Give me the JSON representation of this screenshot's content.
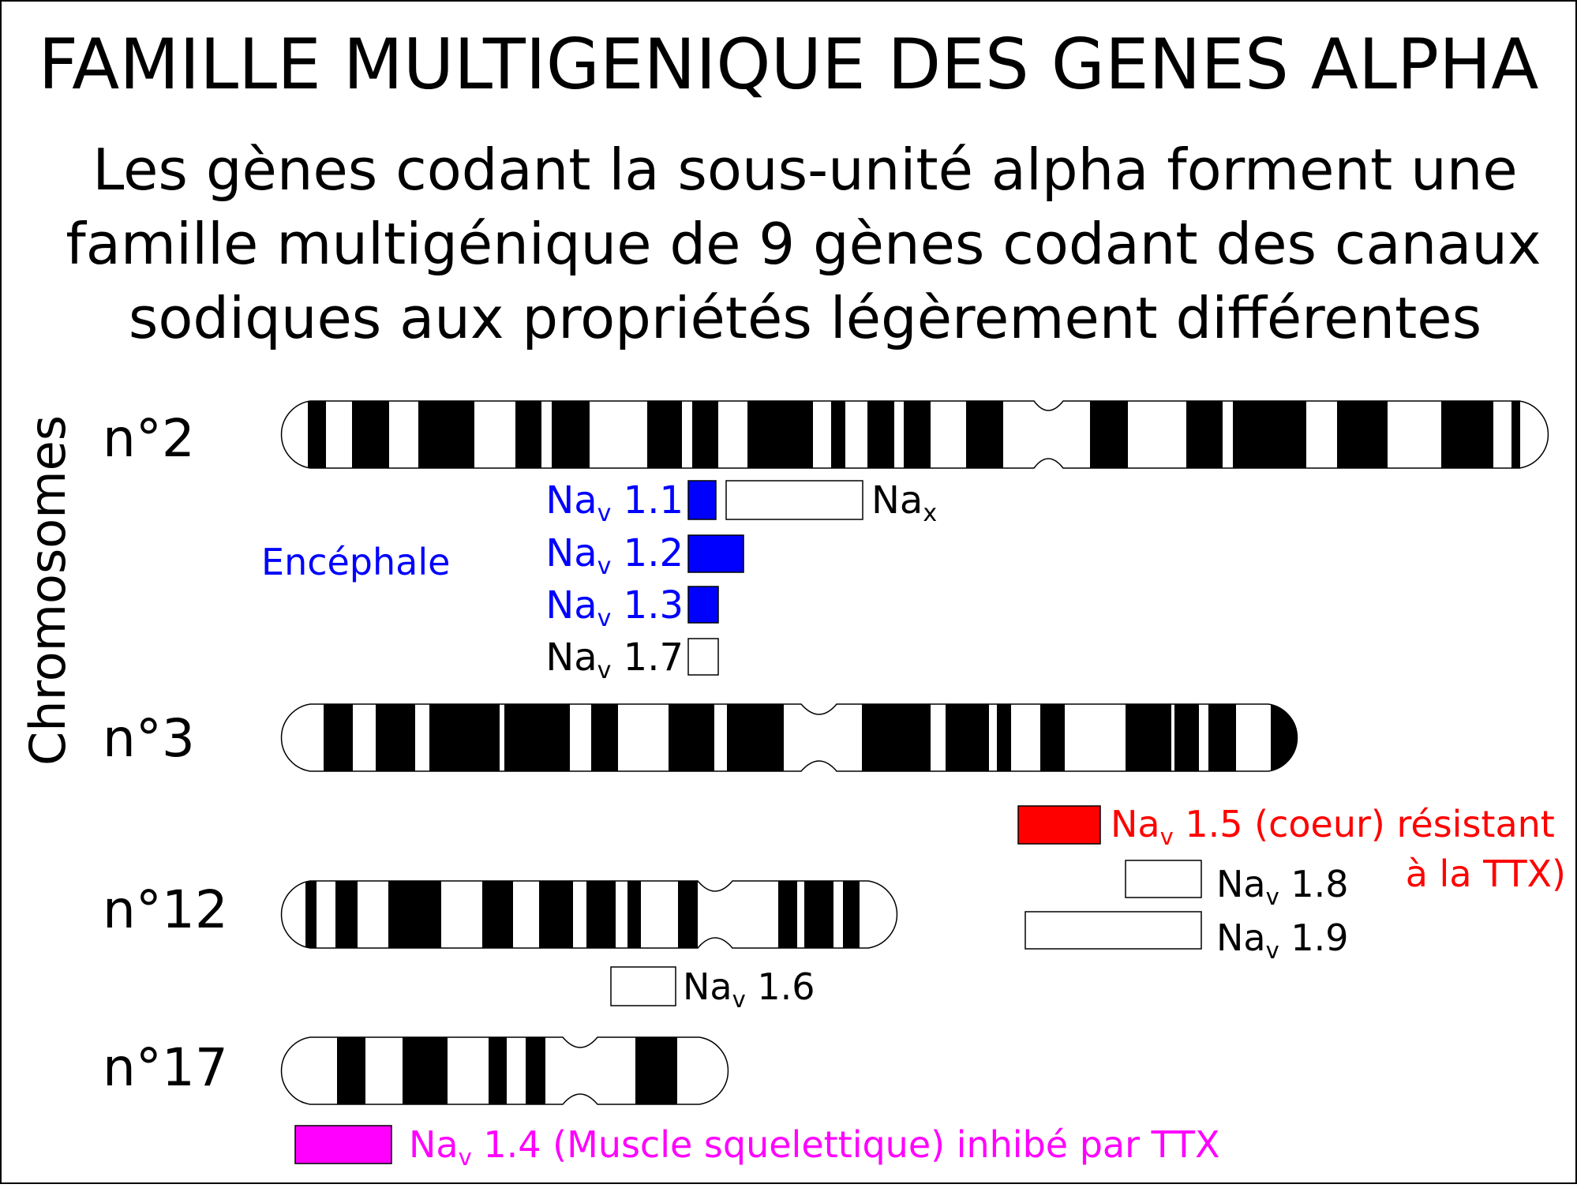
{
  "title": "FAMILLE MULTIGENIQUE DES GENES ALPHA",
  "subtitle": [
    "Les gènes codant la sous-unité alpha forment une",
    "famille multigénique de 9 gènes codant des canaux",
    "sodiques aux propriétés légèrement différentes"
  ],
  "axis_label": "Chromosomes",
  "region_label": "Encéphale",
  "colors": {
    "text": "#000000",
    "brain": "#0000ff",
    "heart": "#ff0000",
    "muscle": "#ff00ff",
    "band": "#000000",
    "outline": "#000000"
  },
  "chromosomes": [
    {
      "id": "chr2",
      "label": "n°2"
    },
    {
      "id": "chr3",
      "label": "n°3"
    },
    {
      "id": "chr12",
      "label": "n°12"
    },
    {
      "id": "chr17",
      "label": "n°17"
    }
  ],
  "genes": {
    "nav11": {
      "prefix": "Na",
      "sub": "v",
      "suffix": " 1.1"
    },
    "nav12": {
      "prefix": "Na",
      "sub": "v",
      "suffix": " 1.2"
    },
    "nav13": {
      "prefix": "Na",
      "sub": "v",
      "suffix": " 1.3"
    },
    "nav17": {
      "prefix": "Na",
      "sub": "v",
      "suffix": " 1.7"
    },
    "nax": {
      "prefix": "Na",
      "sub": "x",
      "suffix": ""
    },
    "nav15": {
      "prefix": "Na",
      "sub": "v",
      "suffix": " 1.5 (coeur) résistant",
      "line2": "à la TTX)"
    },
    "nav18": {
      "prefix": "Na",
      "sub": "v",
      "suffix": " 1.8"
    },
    "nav19": {
      "prefix": "Na",
      "sub": "v",
      "suffix": " 1.9"
    },
    "nav16": {
      "prefix": "Na",
      "sub": "v",
      "suffix": " 1.6"
    },
    "nav14": {
      "prefix": "Na",
      "sub": "v",
      "suffix": " 1.4 (Muscle squelettique) inhibé par TTX"
    }
  }
}
